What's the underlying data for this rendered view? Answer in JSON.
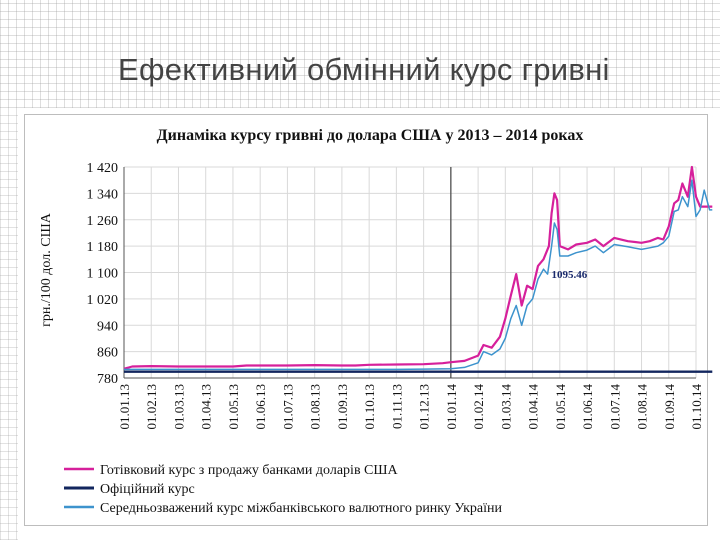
{
  "slide": {
    "title": "Ефективний обмінний курс гривні"
  },
  "chart_data": {
    "type": "line",
    "title": "Динаміка курсу гривні до долара США у 2013 – 2014 роках",
    "ylabel": "грн./100 дол. США",
    "xlabel": "",
    "ylim": [
      780,
      1420
    ],
    "yticks": [
      780,
      860,
      940,
      1020,
      1100,
      1180,
      1260,
      1340,
      1420
    ],
    "ytick_labels": [
      "780",
      "860",
      "940",
      "1 020",
      "1 100",
      "1 180",
      "1 260",
      "1 340",
      "1 420"
    ],
    "x_ticks": [
      "01.01.13",
      "01.02.13",
      "01.03.13",
      "01.04.13",
      "01.05.13",
      "01.06.13",
      "01.07.13",
      "01.08.13",
      "01.09.13",
      "01.10.13",
      "01.11.13",
      "01.12.13",
      "01.01.14",
      "01.02.14",
      "01.03.14",
      "01.04.14",
      "01.05.14",
      "01.06.14",
      "01.07.14",
      "01.08.14",
      "01.09.14",
      "01.10.14"
    ],
    "grid": true,
    "annotation": {
      "text": "1095.46",
      "x": 15.55,
      "y": 1095.46
    },
    "vertical_marker_x": 12,
    "series": [
      {
        "name": "Готівковий курс з продажу банками доларів США",
        "color": "#d6209b",
        "x": [
          0,
          0.3,
          1,
          2,
          3,
          4,
          4.5,
          5,
          6,
          7,
          8,
          8.5,
          9,
          10,
          11,
          11.7,
          12,
          12.5,
          13,
          13.2,
          13.5,
          13.8,
          14,
          14.2,
          14.4,
          14.6,
          14.8,
          15,
          15.2,
          15.4,
          15.6,
          15.7,
          15.8,
          15.9,
          16,
          16.3,
          16.6,
          17,
          17.3,
          17.6,
          18,
          18.5,
          19,
          19.3,
          19.6,
          19.8,
          20,
          20.2,
          20.35,
          20.5,
          20.7,
          20.85,
          21,
          21.15,
          21.3,
          21.5,
          21.6
        ],
        "values": [
          808,
          815,
          816,
          815,
          815,
          815,
          818,
          818,
          818,
          819,
          818,
          818,
          820,
          821,
          822,
          825,
          828,
          832,
          848,
          880,
          872,
          905,
          960,
          1030,
          1095,
          1000,
          1060,
          1050,
          1120,
          1140,
          1180,
          1280,
          1340,
          1320,
          1180,
          1170,
          1185,
          1190,
          1200,
          1180,
          1205,
          1195,
          1190,
          1195,
          1205,
          1200,
          1240,
          1310,
          1320,
          1370,
          1330,
          1420,
          1330,
          1300,
          1300,
          1300,
          1300
        ]
      },
      {
        "name": "Офіційний курс",
        "color": "#12265e",
        "x": [
          0,
          13.1,
          13.12,
          21.6
        ],
        "values": [
          799,
          799,
          799,
          799
        ]
      },
      {
        "name": "Середньозважений курс міжбанківського валютного ринку України",
        "color": "#3d93cd",
        "x": [
          0,
          1,
          2,
          3,
          4,
          5,
          6,
          7,
          8,
          9,
          10,
          11,
          12,
          12.5,
          13,
          13.2,
          13.5,
          13.8,
          14,
          14.2,
          14.4,
          14.6,
          14.8,
          15,
          15.2,
          15.4,
          15.55,
          15.7,
          15.8,
          15.9,
          16,
          16.3,
          16.6,
          17,
          17.3,
          17.6,
          18,
          18.5,
          19,
          19.3,
          19.6,
          19.8,
          20,
          20.2,
          20.35,
          20.5,
          20.7,
          20.85,
          21,
          21.15,
          21.3,
          21.5,
          21.6
        ],
        "values": [
          806,
          806,
          806,
          806,
          806,
          806,
          806,
          806,
          806,
          806,
          806,
          807,
          808,
          812,
          826,
          860,
          850,
          868,
          900,
          960,
          1000,
          940,
          1000,
          1020,
          1080,
          1110,
          1095,
          1180,
          1250,
          1230,
          1150,
          1150,
          1160,
          1168,
          1180,
          1160,
          1185,
          1178,
          1170,
          1175,
          1180,
          1190,
          1210,
          1285,
          1290,
          1330,
          1300,
          1380,
          1270,
          1290,
          1350,
          1290,
          1290
        ]
      }
    ],
    "legend": {
      "position": "bottom",
      "items": [
        "Готівковий курс з продажу банками доларів США",
        "Офіційний курс",
        "Середньозважений курс міжбанківського валютного ринку України"
      ]
    }
  }
}
